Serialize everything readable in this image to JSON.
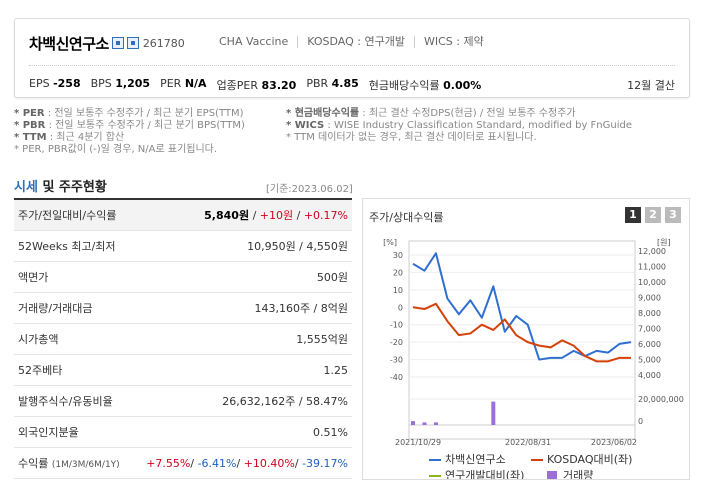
{
  "header": {
    "company_name": "차백신연구소",
    "ticker": "261780",
    "meta": [
      "CHA Vaccine",
      "KOSDAQ : 연구개발",
      "WICS : 제약"
    ],
    "stats": [
      {
        "label": "EPS",
        "value": "-258"
      },
      {
        "label": "BPS",
        "value": "1,205"
      },
      {
        "label": "PER",
        "value": "N/A"
      },
      {
        "label": "업종PER",
        "value": "83.20"
      },
      {
        "label": "PBR",
        "value": "4.85"
      },
      {
        "label": "현금배당수익률",
        "value": "0.00%"
      }
    ],
    "settlement": "12월 결산"
  },
  "notes": {
    "left": [
      {
        "key": "* PER",
        "text": ": 전일 보통주 수정주가 / 최근 분기 EPS(TTM)"
      },
      {
        "key": "* PBR",
        "text": ": 전일 보통주 수정주가 / 최근 분기 BPS(TTM)"
      },
      {
        "key": "* TTM",
        "text": ": 최근 4분기 합산"
      },
      {
        "key": "",
        "text": "* PER, PBR값이 (-)일 경우, N/A로 표기됩니다."
      }
    ],
    "right": [
      {
        "key": "* 현금배당수익률",
        "text": ": 최근 결산 수정DPS(현금) / 전일 보통주 수정주가"
      },
      {
        "key": "* WICS",
        "text": ": WISE Industry Classification Standard, modified by FnGuide"
      },
      {
        "key": "",
        "text": "* TTM 데이터가 없는 경우, 최근 결산 데이터로 표시됩니다."
      }
    ]
  },
  "section": {
    "title_blue": "시세",
    "title_rest": " 및 주주현황",
    "base_date": "[기준:2023.06.02]"
  },
  "table": {
    "price_label": "주가/전일대비/수익률",
    "price": "5,840원",
    "change": "+10원",
    "change_rate": "+0.17%",
    "rows": [
      {
        "label": "52Weeks 최고/최저",
        "value": "10,950원 / 4,550원"
      },
      {
        "label": "액면가",
        "value": "500원"
      },
      {
        "label": "거래량/거래대금",
        "value": "143,160주 / 8억원"
      },
      {
        "label": "시가총액",
        "value": "1,555억원"
      },
      {
        "label": "52주베타",
        "value": "1.25"
      },
      {
        "label": "발행주식수/유동비율",
        "value": "26,632,162주 / 58.47%"
      },
      {
        "label": "외국인지분율",
        "value": "0.51%"
      }
    ],
    "return_label": "수익률",
    "return_sub": "(1M/3M/6M/1Y)",
    "returns": [
      "+7.55%",
      "-6.41%",
      "+10.40%",
      "-39.17%"
    ]
  },
  "chart_panel": {
    "title": "주가/상대수익률",
    "pages": [
      "1",
      "2",
      "3"
    ]
  },
  "chart_data": {
    "type": "line",
    "left_unit": "[%]",
    "right_unit": "[원]",
    "left_ticks": [
      "30",
      "20",
      "10",
      "0",
      "-10",
      "-20",
      "-30",
      "-40"
    ],
    "right_ticks": [
      "12,000",
      "11,000",
      "10,000",
      "9,000",
      "8,000",
      "7,000",
      "6,000",
      "5,000",
      "4,000"
    ],
    "volume_ticks": [
      "20,000,000",
      "0"
    ],
    "x_ticks": [
      "2021/10/29",
      "2022/08/31",
      "2023/06/02"
    ],
    "series": [
      {
        "name": "차백신연구소",
        "color": "#2f6fd1",
        "values": [
          25,
          21,
          31,
          5,
          -4,
          4,
          -6,
          12,
          -14,
          -5,
          -10,
          -30,
          -29,
          -29,
          -25,
          -28,
          -25,
          -26,
          -21,
          -20
        ]
      },
      {
        "name": "KOSDAQ대비(좌)",
        "color": "#d4420a",
        "values": [
          0,
          -1,
          2,
          -8,
          -16,
          -15,
          -10,
          -13,
          -7,
          -16,
          -20,
          -22,
          -23,
          -19,
          -22,
          -28,
          -31,
          -31,
          -29,
          -29
        ]
      },
      {
        "name": "연구개발대비(좌)",
        "color": "#8ab51f",
        "values": []
      },
      {
        "name": "거래량",
        "color": "#9b6fd6",
        "values": [
          3,
          2,
          2,
          0,
          0,
          0,
          0,
          18,
          0,
          0,
          0,
          0,
          0,
          0,
          0,
          0,
          0,
          0,
          0,
          0
        ]
      }
    ],
    "ylim": [
      -40,
      30
    ]
  }
}
